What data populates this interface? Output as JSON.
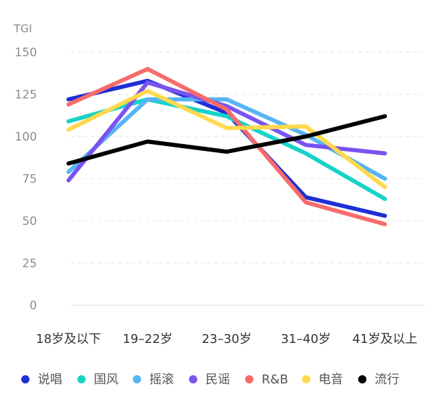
{
  "chart_data": {
    "type": "line",
    "title": "",
    "xlabel": "",
    "ylabel": "TGI",
    "ylim": [
      0,
      150
    ],
    "yticks": [
      0,
      25,
      50,
      75,
      100,
      125,
      150
    ],
    "grid": true,
    "legend_position": "bottom",
    "categories": [
      "18岁及以下",
      "19–22岁",
      "23–30岁",
      "31–40岁",
      "41岁及以上"
    ],
    "series": [
      {
        "name": "说唱",
        "color": "#1f2fd6",
        "values": [
          122,
          133,
          114,
          64,
          53
        ]
      },
      {
        "name": "国风",
        "color": "#16d3c7",
        "values": [
          109,
          122,
          112,
          90,
          63
        ]
      },
      {
        "name": "摇滚",
        "color": "#57b4f5",
        "values": [
          79,
          122,
          122,
          101,
          75
        ]
      },
      {
        "name": "民谣",
        "color": "#7a53f0",
        "values": [
          74,
          132,
          118,
          95,
          90
        ]
      },
      {
        "name": "R&B",
        "color": "#f86b6b",
        "values": [
          119,
          140,
          116,
          61,
          48
        ]
      },
      {
        "name": "电音",
        "color": "#ffd94d",
        "values": [
          104,
          127,
          105,
          106,
          70
        ]
      },
      {
        "name": "流行",
        "color": "#000000",
        "values": [
          84,
          97,
          91,
          100,
          112
        ]
      }
    ]
  }
}
